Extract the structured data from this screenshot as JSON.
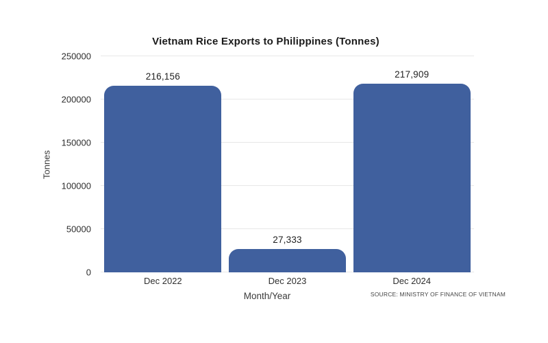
{
  "figure": {
    "background": "#ffffff"
  },
  "chart_data": {
    "type": "bar",
    "title": "Vietnam Rice Exports to Philippines (Tonnes)",
    "categories": [
      "Dec 2022",
      "Dec 2023",
      "Dec 2024"
    ],
    "values": [
      216156,
      27333,
      217909
    ],
    "value_labels": [
      "216,156",
      "27,333",
      "217,909"
    ],
    "xlabel": "Month/Year",
    "ylabel": "Tonnes",
    "ylim": [
      0,
      250000
    ],
    "yticks": [
      0,
      50000,
      100000,
      150000,
      200000,
      250000
    ],
    "ytick_labels": [
      "0",
      "50000",
      "100000",
      "150000",
      "200000",
      "250000"
    ],
    "grid": "horizontal",
    "legend": "none",
    "source": "SOURCE: MINISTRY OF FINANCE OF VIETNAM"
  },
  "colors": {
    "bar": "#40609E",
    "gridline": "#e7e7e7",
    "title_text": "#1a1a1a",
    "tick_text": "#2e2e2e",
    "axis_text": "#3a3a3a",
    "source_text": "#444444"
  }
}
